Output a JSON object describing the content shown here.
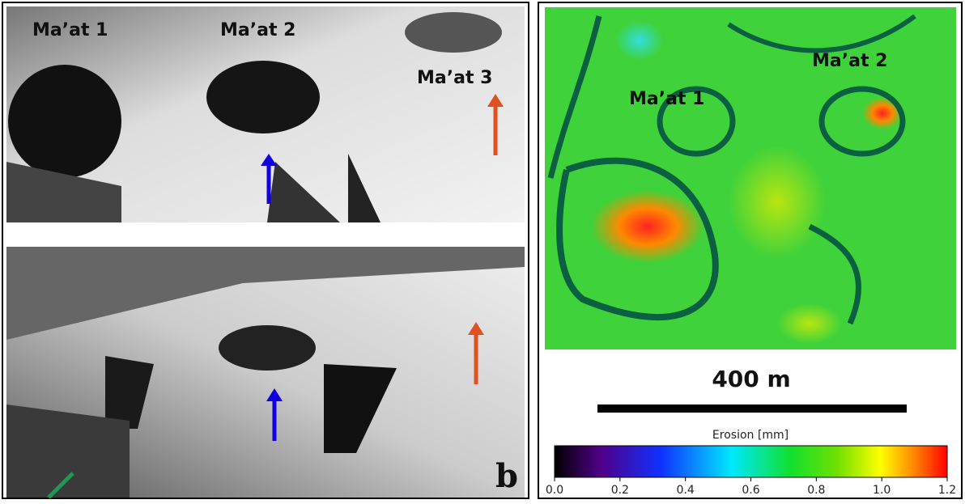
{
  "left_panel": {
    "top_labels": [
      "Ma’at 1",
      "Ma’at 2",
      "Ma’at 3"
    ],
    "panel_letter": "b"
  },
  "right_panel": {
    "labels": [
      "Ma’at 1",
      "Ma’at 2"
    ],
    "scale_bar": "400 m",
    "colorbar": {
      "title": "Erosion [mm]",
      "clim": [
        0,
        1.2
      ],
      "ticks": [
        {
          "value": 0,
          "label": "0.0"
        },
        0.2,
        0.4,
        0.6,
        0.8,
        {
          "value": 1,
          "label": "1.0"
        },
        1.2
      ]
    }
  }
}
